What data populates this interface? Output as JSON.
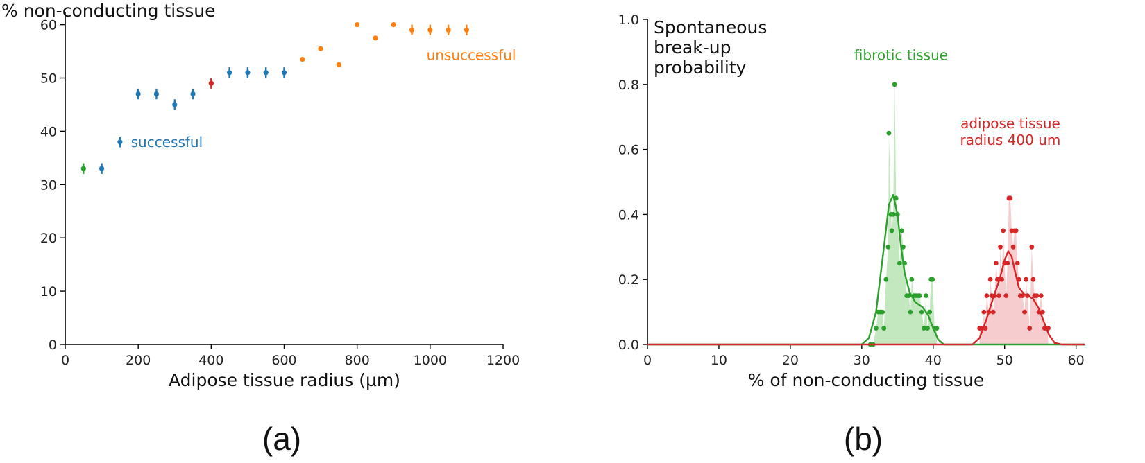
{
  "chart_data": [
    {
      "type": "scatter",
      "panel_label": "(a)",
      "xlabel": "Adipose tissue radius (µm)",
      "ylabel": "% non-conducting tissue",
      "xlim": [
        0,
        1200
      ],
      "ylim": [
        0,
        62
      ],
      "xticks": [
        "0",
        "200",
        "400",
        "600",
        "800",
        "1000",
        "1200"
      ],
      "yticks": [
        "0",
        "10",
        "20",
        "30",
        "40",
        "50",
        "60"
      ],
      "grid": false,
      "colors": {
        "fibrotic": "#2ca02c",
        "successful": "#1f77b4",
        "reference": "#d62728",
        "unsuccessful": "#ff7f0e"
      },
      "points": [
        {
          "x": 50,
          "y": 33,
          "err": 1,
          "group": "fibrotic"
        },
        {
          "x": 100,
          "y": 33,
          "err": 1,
          "group": "successful"
        },
        {
          "x": 150,
          "y": 38,
          "err": 1,
          "group": "successful"
        },
        {
          "x": 200,
          "y": 47,
          "err": 1,
          "group": "successful"
        },
        {
          "x": 250,
          "y": 47,
          "err": 1,
          "group": "successful"
        },
        {
          "x": 300,
          "y": 45,
          "err": 1,
          "group": "successful"
        },
        {
          "x": 350,
          "y": 47,
          "err": 1,
          "group": "successful"
        },
        {
          "x": 400,
          "y": 49,
          "err": 1,
          "group": "reference"
        },
        {
          "x": 450,
          "y": 51,
          "err": 1,
          "group": "successful"
        },
        {
          "x": 500,
          "y": 51,
          "err": 1,
          "group": "successful"
        },
        {
          "x": 550,
          "y": 51,
          "err": 1,
          "group": "successful"
        },
        {
          "x": 600,
          "y": 51,
          "err": 1,
          "group": "successful"
        },
        {
          "x": 650,
          "y": 53.5,
          "err": 0,
          "group": "unsuccessful"
        },
        {
          "x": 700,
          "y": 55.5,
          "err": 0,
          "group": "unsuccessful"
        },
        {
          "x": 750,
          "y": 52.5,
          "err": 0,
          "group": "unsuccessful"
        },
        {
          "x": 800,
          "y": 60,
          "err": 0,
          "group": "unsuccessful"
        },
        {
          "x": 850,
          "y": 57.5,
          "err": 0,
          "group": "unsuccessful"
        },
        {
          "x": 900,
          "y": 60,
          "err": 0,
          "group": "unsuccessful"
        },
        {
          "x": 950,
          "y": 59,
          "err": 1,
          "group": "unsuccessful"
        },
        {
          "x": 1000,
          "y": 59,
          "err": 1,
          "group": "unsuccessful"
        },
        {
          "x": 1050,
          "y": 59,
          "err": 1,
          "group": "unsuccessful"
        },
        {
          "x": 1100,
          "y": 59,
          "err": 1,
          "group": "unsuccessful"
        }
      ],
      "annotations": [
        {
          "text": "successful",
          "x": 180,
          "y": 38,
          "group": "successful"
        },
        {
          "text": "unsuccessful",
          "x": 990,
          "y": 54.3,
          "group": "unsuccessful"
        }
      ]
    },
    {
      "type": "area",
      "panel_label": "(b)",
      "title": "Spontaneous\nbreak-up\nprobability",
      "xlabel": "% of non-conducting tissue",
      "ylabel": "",
      "xlim": [
        0,
        61.2
      ],
      "ylim": [
        0,
        1.0
      ],
      "xticks": [
        "0",
        "10",
        "20",
        "30",
        "40",
        "50",
        "60"
      ],
      "yticks": [
        "0.0",
        "0.2",
        "0.4",
        "0.6",
        "0.8",
        "1.0"
      ],
      "grid": false,
      "series": [
        {
          "name": "fibrotic tissue",
          "color": "#2ca02c",
          "fill": "#b9e3b3",
          "points": [
            [
              31.2,
              0
            ],
            [
              31.6,
              0
            ],
            [
              32.0,
              0.05
            ],
            [
              32.3,
              0.1
            ],
            [
              32.6,
              0.1
            ],
            [
              32.9,
              0.1
            ],
            [
              33.1,
              0.05
            ],
            [
              33.4,
              0.2
            ],
            [
              33.7,
              0.3
            ],
            [
              33.8,
              0.65
            ],
            [
              34.1,
              0.4
            ],
            [
              34.2,
              0.35
            ],
            [
              34.4,
              0.4
            ],
            [
              34.6,
              0.8
            ],
            [
              34.8,
              0.45
            ],
            [
              35.0,
              0.4
            ],
            [
              35.3,
              0.25
            ],
            [
              35.6,
              0.35
            ],
            [
              35.8,
              0.3
            ],
            [
              36.0,
              0.25
            ],
            [
              36.3,
              0.15
            ],
            [
              36.6,
              0.15
            ],
            [
              36.8,
              0.1
            ],
            [
              37.0,
              0.2
            ],
            [
              37.3,
              0.15
            ],
            [
              37.6,
              0.15
            ],
            [
              37.9,
              0.15
            ],
            [
              38.1,
              0.15
            ],
            [
              38.4,
              0.1
            ],
            [
              38.7,
              0.05
            ],
            [
              39.0,
              0.15
            ],
            [
              39.2,
              0.05
            ],
            [
              39.5,
              0.1
            ],
            [
              39.7,
              0.2
            ],
            [
              39.9,
              0.2
            ],
            [
              40.2,
              0.05
            ],
            [
              40.5,
              0.05
            ]
          ],
          "curve": [
            [
              0,
              0
            ],
            [
              30,
              0
            ],
            [
              31,
              0.02
            ],
            [
              32,
              0.1
            ],
            [
              33,
              0.28
            ],
            [
              33.8,
              0.43
            ],
            [
              34.4,
              0.46
            ],
            [
              35,
              0.4
            ],
            [
              35.5,
              0.3
            ],
            [
              36,
              0.22
            ],
            [
              36.7,
              0.16
            ],
            [
              37.5,
              0.13
            ],
            [
              38.5,
              0.115
            ],
            [
              39.3,
              0.09
            ],
            [
              40,
              0.05
            ],
            [
              40.7,
              0.015
            ],
            [
              41.5,
              0
            ],
            [
              61.2,
              0
            ]
          ]
        },
        {
          "name": "adipose tissue\nradius 400 um",
          "color": "#d62728",
          "fill": "#f5c3c5",
          "points": [
            [
              46.5,
              0.05
            ],
            [
              46.9,
              0.05
            ],
            [
              47.1,
              0.1
            ],
            [
              47.3,
              0.05
            ],
            [
              47.5,
              0.15
            ],
            [
              47.8,
              0.1
            ],
            [
              48.0,
              0.2
            ],
            [
              48.2,
              0.15
            ],
            [
              48.4,
              0.1
            ],
            [
              48.6,
              0.15
            ],
            [
              48.8,
              0.25
            ],
            [
              49.0,
              0.2
            ],
            [
              49.2,
              0.15
            ],
            [
              49.4,
              0.3
            ],
            [
              49.6,
              0.2
            ],
            [
              49.8,
              0.35
            ],
            [
              50.0,
              0.25
            ],
            [
              50.2,
              0.15
            ],
            [
              50.4,
              0.25
            ],
            [
              50.6,
              0.45
            ],
            [
              50.8,
              0.45
            ],
            [
              51.0,
              0.35
            ],
            [
              51.2,
              0.3
            ],
            [
              51.4,
              0.35
            ],
            [
              51.6,
              0.35
            ],
            [
              51.8,
              0.25
            ],
            [
              52.0,
              0.2
            ],
            [
              52.2,
              0.15
            ],
            [
              52.5,
              0.15
            ],
            [
              52.8,
              0.1
            ],
            [
              53.0,
              0.2
            ],
            [
              53.2,
              0.15
            ],
            [
              53.5,
              0.05
            ],
            [
              53.8,
              0.3
            ],
            [
              54.0,
              0.2
            ],
            [
              54.2,
              0.15
            ],
            [
              54.5,
              0.15
            ],
            [
              54.8,
              0.1
            ],
            [
              55.1,
              0.15
            ],
            [
              55.3,
              0.1
            ],
            [
              55.6,
              0.05
            ],
            [
              55.9,
              0.05
            ],
            [
              56.1,
              0.05
            ]
          ],
          "curve": [
            [
              0,
              0
            ],
            [
              45.5,
              0
            ],
            [
              46.5,
              0.02
            ],
            [
              47.5,
              0.08
            ],
            [
              48.5,
              0.15
            ],
            [
              49.3,
              0.2
            ],
            [
              50,
              0.26
            ],
            [
              50.5,
              0.287
            ],
            [
              51,
              0.27
            ],
            [
              51.5,
              0.22
            ],
            [
              52,
              0.175
            ],
            [
              52.7,
              0.155
            ],
            [
              53.3,
              0.15
            ],
            [
              54,
              0.14
            ],
            [
              54.8,
              0.11
            ],
            [
              55.5,
              0.07
            ],
            [
              56.2,
              0.03
            ],
            [
              57,
              0.005
            ],
            [
              58,
              0
            ],
            [
              61.2,
              0
            ]
          ]
        }
      ],
      "annotations": [
        {
          "text": "fibrotic tissue",
          "x": 35.5,
          "y": 0.875,
          "series": 0
        },
        {
          "text": "adipose tissue\nradius 400 um",
          "x": 50.8,
          "y": 0.665,
          "series": 1
        }
      ]
    }
  ]
}
